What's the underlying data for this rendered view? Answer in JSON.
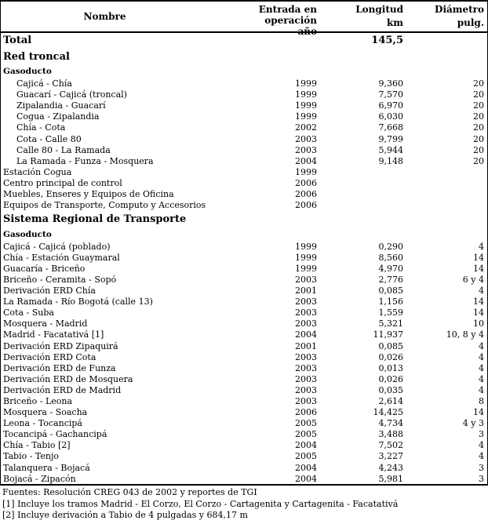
{
  "table": {
    "header": {
      "nombre": "Nombre",
      "entrada_line1": "Entrada en operación",
      "entrada_line2": "año",
      "longitud_line1": "Longitud",
      "longitud_line2": "km",
      "diametro_line1": "Diámetro",
      "diametro_line2": "pulg."
    },
    "rows": [
      {
        "type": "total",
        "indent": false,
        "name": "Total",
        "year": "",
        "length": "145,5",
        "diameter": ""
      },
      {
        "type": "section",
        "indent": false,
        "name": "Red troncal",
        "year": "",
        "length": "",
        "diameter": ""
      },
      {
        "type": "subsection",
        "indent": false,
        "name": "Gasoducto",
        "year": "",
        "length": "",
        "diameter": ""
      },
      {
        "type": "data",
        "indent": true,
        "name": "Cajicá - Chía",
        "year": "1999",
        "length": "9,360",
        "diameter": "20"
      },
      {
        "type": "data",
        "indent": true,
        "name": "Guacarí - Cajicá (troncal)",
        "year": "1999",
        "length": "7,570",
        "diameter": "20"
      },
      {
        "type": "data",
        "indent": true,
        "name": "Zipalandia - Guacarí",
        "year": "1999",
        "length": "6,970",
        "diameter": "20"
      },
      {
        "type": "data",
        "indent": true,
        "name": "Cogua - Zipalandia",
        "year": "1999",
        "length": "6,030",
        "diameter": "20"
      },
      {
        "type": "data",
        "indent": true,
        "name": "Chía - Cota",
        "year": "2002",
        "length": "7,668",
        "diameter": "20"
      },
      {
        "type": "data",
        "indent": true,
        "name": "Cota - Calle 80",
        "year": "2003",
        "length": "9,799",
        "diameter": "20"
      },
      {
        "type": "data",
        "indent": true,
        "name": "Calle 80 - La Ramada",
        "year": "2003",
        "length": "5,944",
        "diameter": "20"
      },
      {
        "type": "data",
        "indent": true,
        "name": "La Ramada - Funza - Mosquera",
        "year": "2004",
        "length": "9,148",
        "diameter": "20"
      },
      {
        "type": "data",
        "indent": false,
        "name": "Estación Cogua",
        "year": "1999",
        "length": "",
        "diameter": ""
      },
      {
        "type": "data",
        "indent": false,
        "name": "Centro principal de control",
        "year": "2006",
        "length": "",
        "diameter": ""
      },
      {
        "type": "data",
        "indent": false,
        "name": "Muebles, Enseres y Equipos de Oficina",
        "year": "2006",
        "length": "",
        "diameter": ""
      },
      {
        "type": "data",
        "indent": false,
        "name": "Equipos de Transporte, Computo y Accesorios",
        "year": "2006",
        "length": "",
        "diameter": ""
      },
      {
        "type": "section",
        "indent": false,
        "name": "Sistema Regional de Transporte",
        "year": "",
        "length": "",
        "diameter": ""
      },
      {
        "type": "subsection",
        "indent": false,
        "name": "Gasoducto",
        "year": "",
        "length": "",
        "diameter": ""
      },
      {
        "type": "data",
        "indent": false,
        "name": "Cajicá - Cajicá (poblado)",
        "year": "1999",
        "length": "0,290",
        "diameter": "4"
      },
      {
        "type": "data",
        "indent": false,
        "name": "Chía - Estación Guaymaral",
        "year": "1999",
        "length": "8,560",
        "diameter": "14"
      },
      {
        "type": "data",
        "indent": false,
        "name": "Guacaría - Briceño",
        "year": "1999",
        "length": "4,970",
        "diameter": "14"
      },
      {
        "type": "data",
        "indent": false,
        "name": "Briceño - Ceramita - Sopó",
        "year": "2003",
        "length": "2,776",
        "diameter": "6 y 4"
      },
      {
        "type": "data",
        "indent": false,
        "name": "Derivación ERD Chía",
        "year": "2001",
        "length": "0,085",
        "diameter": "4"
      },
      {
        "type": "data",
        "indent": false,
        "name": "La Ramada - Río Bogotá (calle 13)",
        "year": "2003",
        "length": "1,156",
        "diameter": "14"
      },
      {
        "type": "data",
        "indent": false,
        "name": "Cota - Suba",
        "year": "2003",
        "length": "1,559",
        "diameter": "14"
      },
      {
        "type": "data",
        "indent": false,
        "name": "Mosquera - Madrid",
        "year": "2003",
        "length": "5,321",
        "diameter": "10"
      },
      {
        "type": "data",
        "indent": false,
        "name": "Madrid - Facatativá [1]",
        "year": "2004",
        "length": "11,937",
        "diameter": "10, 8 y 4"
      },
      {
        "type": "data",
        "indent": false,
        "name": "Derivación ERD Zipaquirá",
        "year": "2001",
        "length": "0,085",
        "diameter": "4"
      },
      {
        "type": "data",
        "indent": false,
        "name": "Derivación ERD Cota",
        "year": "2003",
        "length": "0,026",
        "diameter": "4"
      },
      {
        "type": "data",
        "indent": false,
        "name": "Derivación ERD de Funza",
        "year": "2003",
        "length": "0,013",
        "diameter": "4"
      },
      {
        "type": "data",
        "indent": false,
        "name": "Derivación ERD de Mosquera",
        "year": "2003",
        "length": "0,026",
        "diameter": "4"
      },
      {
        "type": "data",
        "indent": false,
        "name": "Derivación ERD de Madrid",
        "year": "2003",
        "length": "0,035",
        "diameter": "4"
      },
      {
        "type": "data",
        "indent": false,
        "name": "Briceño - Leona",
        "year": "2003",
        "length": "2,614",
        "diameter": "8"
      },
      {
        "type": "data",
        "indent": false,
        "name": "Mosquera - Soacha",
        "year": "2006",
        "length": "14,425",
        "diameter": "14"
      },
      {
        "type": "data",
        "indent": false,
        "name": "Leona - Tocancipá",
        "year": "2005",
        "length": "4,734",
        "diameter": "4 y 3"
      },
      {
        "type": "data",
        "indent": false,
        "name": "Tocancipá - Gachancipá",
        "year": "2005",
        "length": "3,488",
        "diameter": "3"
      },
      {
        "type": "data",
        "indent": false,
        "name": "Chía - Tabio [2]",
        "year": "2004",
        "length": "7,502",
        "diameter": "4"
      },
      {
        "type": "data",
        "indent": false,
        "name": "Tabio - Tenjo",
        "year": "2005",
        "length": "3,227",
        "diameter": "4"
      },
      {
        "type": "data",
        "indent": false,
        "name": "Talanquera - Bojacá",
        "year": "2004",
        "length": "4,243",
        "diameter": "3"
      },
      {
        "type": "data",
        "indent": false,
        "name": "Bojacá - Zipacón",
        "year": "2004",
        "length": "5,981",
        "diameter": "3"
      }
    ]
  },
  "footnotes": [
    "Fuentes: Resolución CREG 043 de 2002 y reportes de TGI",
    "[1] Incluye los tramos Madrid - El Corzo, El Corzo - Cartagenita y Cartagenita - Facatativá",
    "[2] Incluye derivación a Tabio de 4 pulgadas y 684,17 m"
  ],
  "colors": {
    "text": "#000000",
    "background": "#ffffff",
    "border": "#000000"
  }
}
